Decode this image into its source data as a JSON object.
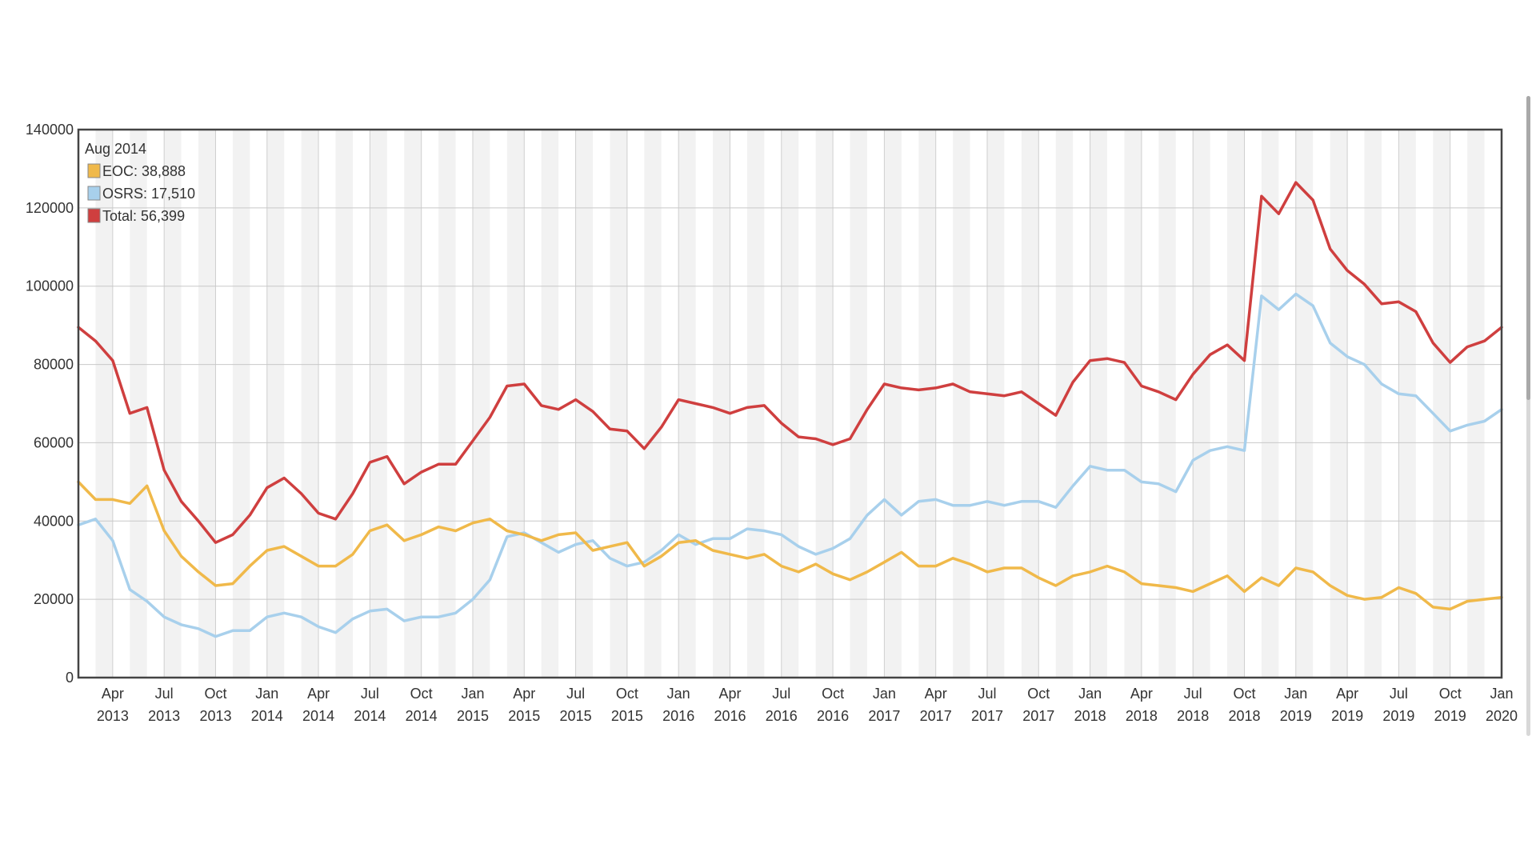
{
  "chart_data": {
    "type": "line",
    "title": "",
    "xlabel": "",
    "ylabel": "",
    "ylim": [
      0,
      140000
    ],
    "yticks": [
      0,
      20000,
      40000,
      60000,
      80000,
      100000,
      120000,
      140000
    ],
    "grid": true,
    "legend": {
      "placement": "top-left",
      "header": "Aug 2014",
      "entries": [
        {
          "label": "EOC: 38,888",
          "color": "#f0b94a"
        },
        {
          "label": "OSRS: 17,510",
          "color": "#a8d0ec"
        },
        {
          "label": "Total: 56,399",
          "color": "#cf3f3f"
        }
      ]
    },
    "xticks": [
      {
        "month": "Apr",
        "year": "2013",
        "date": "2013-04"
      },
      {
        "month": "Jul",
        "year": "2013",
        "date": "2013-07"
      },
      {
        "month": "Oct",
        "year": "2013",
        "date": "2013-10"
      },
      {
        "month": "Jan",
        "year": "2014",
        "date": "2014-01"
      },
      {
        "month": "Apr",
        "year": "2014",
        "date": "2014-04"
      },
      {
        "month": "Jul",
        "year": "2014",
        "date": "2014-07"
      },
      {
        "month": "Oct",
        "year": "2014",
        "date": "2014-10"
      },
      {
        "month": "Jan",
        "year": "2015",
        "date": "2015-01"
      },
      {
        "month": "Apr",
        "year": "2015",
        "date": "2015-04"
      },
      {
        "month": "Jul",
        "year": "2015",
        "date": "2015-07"
      },
      {
        "month": "Oct",
        "year": "2015",
        "date": "2015-10"
      },
      {
        "month": "Jan",
        "year": "2016",
        "date": "2016-01"
      },
      {
        "month": "Apr",
        "year": "2016",
        "date": "2016-04"
      },
      {
        "month": "Jul",
        "year": "2016",
        "date": "2016-07"
      },
      {
        "month": "Oct",
        "year": "2016",
        "date": "2016-10"
      },
      {
        "month": "Jan",
        "year": "2017",
        "date": "2017-01"
      },
      {
        "month": "Apr",
        "year": "2017",
        "date": "2017-04"
      },
      {
        "month": "Jul",
        "year": "2017",
        "date": "2017-07"
      },
      {
        "month": "Oct",
        "year": "2017",
        "date": "2017-10"
      },
      {
        "month": "Jan",
        "year": "2018",
        "date": "2018-01"
      },
      {
        "month": "Apr",
        "year": "2018",
        "date": "2018-04"
      },
      {
        "month": "Jul",
        "year": "2018",
        "date": "2018-07"
      },
      {
        "month": "Oct",
        "year": "2018",
        "date": "2018-10"
      },
      {
        "month": "Jan",
        "year": "2019",
        "date": "2019-01"
      },
      {
        "month": "Apr",
        "year": "2019",
        "date": "2019-04"
      },
      {
        "month": "Jul",
        "year": "2019",
        "date": "2019-07"
      },
      {
        "month": "Oct",
        "year": "2019",
        "date": "2019-10"
      },
      {
        "month": "Jan",
        "year": "2020",
        "date": "2020-01"
      }
    ],
    "x": [
      "2013-02",
      "2013-03",
      "2013-04",
      "2013-05",
      "2013-06",
      "2013-07",
      "2013-08",
      "2013-09",
      "2013-10",
      "2013-11",
      "2013-12",
      "2014-01",
      "2014-02",
      "2014-03",
      "2014-04",
      "2014-05",
      "2014-06",
      "2014-07",
      "2014-08",
      "2014-09",
      "2014-10",
      "2014-11",
      "2014-12",
      "2015-01",
      "2015-02",
      "2015-03",
      "2015-04",
      "2015-05",
      "2015-06",
      "2015-07",
      "2015-08",
      "2015-09",
      "2015-10",
      "2015-11",
      "2015-12",
      "2016-01",
      "2016-02",
      "2016-03",
      "2016-04",
      "2016-05",
      "2016-06",
      "2016-07",
      "2016-08",
      "2016-09",
      "2016-10",
      "2016-11",
      "2016-12",
      "2017-01",
      "2017-02",
      "2017-03",
      "2017-04",
      "2017-05",
      "2017-06",
      "2017-07",
      "2017-08",
      "2017-09",
      "2017-10",
      "2017-11",
      "2017-12",
      "2018-01",
      "2018-02",
      "2018-03",
      "2018-04",
      "2018-05",
      "2018-06",
      "2018-07",
      "2018-08",
      "2018-09",
      "2018-10",
      "2018-11",
      "2018-12",
      "2019-01",
      "2019-02",
      "2019-03",
      "2019-04",
      "2019-05",
      "2019-06",
      "2019-07",
      "2019-08",
      "2019-09",
      "2019-10",
      "2019-11",
      "2019-12",
      "2020-01"
    ],
    "series": [
      {
        "name": "Total",
        "color": "#cf3f3f",
        "values": [
          89500,
          86000,
          81000,
          67500,
          69000,
          53000,
          45000,
          40000,
          34500,
          36500,
          41500,
          48500,
          51000,
          47000,
          42000,
          40500,
          47000,
          55000,
          56500,
          49500,
          52500,
          54500,
          54500,
          60500,
          66500,
          74500,
          75000,
          69500,
          68500,
          71000,
          68000,
          63500,
          63000,
          58500,
          64000,
          71000,
          70000,
          69000,
          67500,
          69000,
          69500,
          65000,
          61500,
          61000,
          59500,
          61000,
          68500,
          75000,
          74000,
          73500,
          74000,
          75000,
          73000,
          72500,
          72000,
          73000,
          70000,
          67000,
          75500,
          81000,
          81500,
          80500,
          74500,
          73000,
          71000,
          77500,
          82500,
          85000,
          81000,
          123000,
          118500,
          126500,
          122000,
          109500,
          104000,
          100500,
          95500,
          96000,
          93500,
          85500,
          80500,
          84500,
          86000,
          89500
        ]
      },
      {
        "name": "OSRS",
        "color": "#a8d0ec",
        "values": [
          39000,
          40500,
          35000,
          22500,
          19500,
          15500,
          13500,
          12500,
          10500,
          12000,
          12000,
          15500,
          16500,
          15500,
          13000,
          11500,
          15000,
          17000,
          17500,
          14500,
          15500,
          15500,
          16500,
          20000,
          25000,
          36000,
          37000,
          34500,
          32000,
          34000,
          35000,
          30500,
          28500,
          29500,
          32500,
          36500,
          34000,
          35500,
          35500,
          38000,
          37500,
          36500,
          33500,
          31500,
          33000,
          35500,
          41500,
          45500,
          41500,
          45000,
          45500,
          44000,
          44000,
          45000,
          44000,
          45000,
          45000,
          43500,
          49000,
          54000,
          53000,
          53000,
          50000,
          49500,
          47500,
          55500,
          58000,
          59000,
          58000,
          97500,
          94000,
          98000,
          95000,
          85500,
          82000,
          80000,
          75000,
          72500,
          72000,
          67500,
          63000,
          64500,
          65500,
          68500
        ]
      },
      {
        "name": "EOC",
        "color": "#f0b94a",
        "values": [
          50000,
          45500,
          45500,
          44500,
          49000,
          37500,
          31000,
          27000,
          23500,
          24000,
          28500,
          32500,
          33500,
          31000,
          28500,
          28500,
          31500,
          37500,
          39000,
          35000,
          36500,
          38500,
          37500,
          39500,
          40500,
          37500,
          36500,
          35000,
          36500,
          37000,
          32500,
          33500,
          34500,
          28500,
          31000,
          34500,
          35000,
          32500,
          31500,
          30500,
          31500,
          28500,
          27000,
          29000,
          26500,
          25000,
          27000,
          29500,
          32000,
          28500,
          28500,
          30500,
          29000,
          27000,
          28000,
          28000,
          25500,
          23500,
          26000,
          27000,
          28500,
          27000,
          24000,
          23500,
          23000,
          22000,
          24000,
          26000,
          22000,
          25500,
          23500,
          28000,
          27000,
          23500,
          21000,
          20000,
          20500,
          23000,
          21500,
          18000,
          17500,
          19500,
          20000,
          20500
        ]
      }
    ]
  }
}
